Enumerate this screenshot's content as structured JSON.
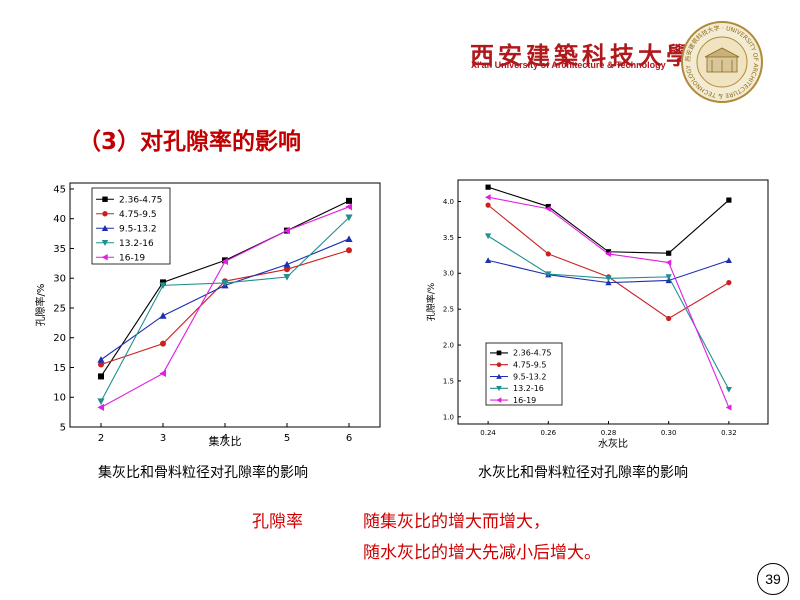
{
  "header": {
    "university_cn": "西安建築科技大學",
    "university_en": "Xi'an University of Architecture & Technology",
    "seal_ring_text": "西安建筑科技大学 · UNIVERSITY OF ARCHITECTURE & TECHNOLOGY"
  },
  "slide": {
    "title": "（3）对孔隙率的影响",
    "caption_left": "集灰比和骨料粒径对孔隙率的影响",
    "caption_right": "水灰比和骨料粒径对孔隙率的影响",
    "note_label": "孔隙率",
    "note_line1": "随集灰比的增大而增大，",
    "note_line2": "随水灰比的增大先减小后增大。",
    "page_number": "39"
  },
  "colors": {
    "accent": "#c00000",
    "series": [
      "#000000",
      "#cc2020",
      "#1f2fb0",
      "#1f8f8f",
      "#e020e0"
    ]
  },
  "chart_data": [
    {
      "type": "line",
      "xlabel": "集灰比",
      "ylabel": "孔隙率/%",
      "x": [
        2,
        3,
        4,
        5,
        6
      ],
      "xticks": [
        "2",
        "3",
        "4",
        "5",
        "6"
      ],
      "xlim": [
        1.5,
        6.5
      ],
      "ylim": [
        5,
        46
      ],
      "yticks": [
        5,
        10,
        15,
        20,
        25,
        30,
        35,
        40,
        45
      ],
      "grid": false,
      "legend": "top-left",
      "series": [
        {
          "name": "2.36-4.75",
          "marker": "square",
          "values": [
            13.5,
            29.3,
            33.0,
            38.0,
            43.0
          ]
        },
        {
          "name": "4.75-9.5",
          "marker": "circle",
          "values": [
            15.5,
            19.0,
            29.5,
            31.5,
            34.7
          ]
        },
        {
          "name": "9.5-13.2",
          "marker": "triangle-up",
          "values": [
            16.3,
            23.7,
            28.8,
            32.3,
            36.6
          ]
        },
        {
          "name": "13.2-16",
          "marker": "triangle-down",
          "values": [
            9.3,
            28.8,
            29.2,
            30.2,
            40.2
          ]
        },
        {
          "name": "16-19",
          "marker": "triangle-left",
          "values": [
            8.3,
            14.0,
            32.8,
            38.0,
            42.0
          ]
        }
      ]
    },
    {
      "type": "line",
      "xlabel": "水灰比",
      "ylabel": "孔隙率/%",
      "x": [
        0.24,
        0.26,
        0.28,
        0.3,
        0.32
      ],
      "xticks": [
        "0.24",
        "0.26",
        "0.28",
        "0.30",
        "0.32"
      ],
      "xlim": [
        0.23,
        0.333
      ],
      "ylim": [
        0.9,
        4.3
      ],
      "yticks": [
        1.0,
        1.5,
        2.0,
        2.5,
        3.0,
        3.5,
        4.0
      ],
      "ytick_labels": [
        "1.0",
        "1.5",
        "2.0",
        "2.5",
        "3.0",
        "3.5",
        "4.0"
      ],
      "grid": false,
      "legend": "bottom-left",
      "series": [
        {
          "name": "2.36-4.75",
          "marker": "square",
          "values": [
            4.2,
            3.93,
            3.3,
            3.28,
            4.02
          ]
        },
        {
          "name": "4.75-9.5",
          "marker": "circle",
          "values": [
            3.95,
            3.27,
            2.95,
            2.37,
            2.87
          ]
        },
        {
          "name": "9.5-13.2",
          "marker": "triangle-up",
          "values": [
            3.18,
            2.98,
            2.87,
            2.9,
            3.18
          ]
        },
        {
          "name": "13.2-16",
          "marker": "triangle-down",
          "values": [
            3.52,
            2.99,
            2.93,
            2.95,
            1.38
          ]
        },
        {
          "name": "16-19",
          "marker": "triangle-left",
          "values": [
            4.06,
            3.9,
            3.27,
            3.15,
            1.13
          ]
        }
      ]
    }
  ]
}
